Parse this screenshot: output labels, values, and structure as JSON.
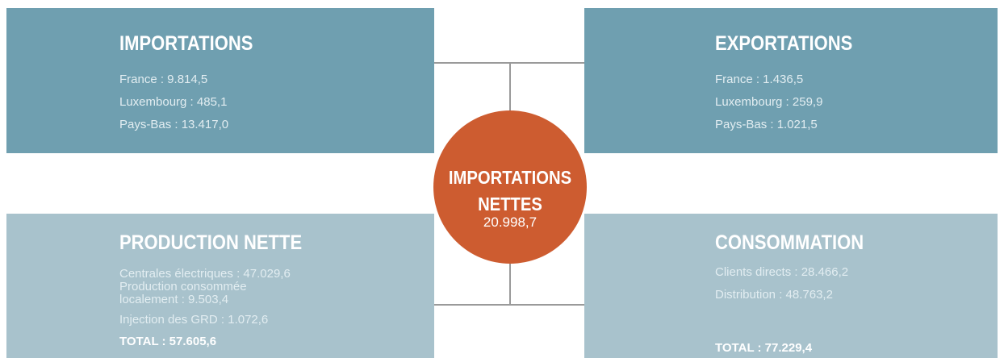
{
  "importations": {
    "title": "IMPORTATIONS",
    "items": [
      "France : 9.814,5",
      "Luxembourg : 485,1",
      "Pays-Bas : 13.417,0"
    ]
  },
  "exportations": {
    "title": "EXPORTATIONS",
    "items": [
      "France : 1.436,5",
      "Luxembourg : 259,9",
      "Pays-Bas : 1.021,5"
    ]
  },
  "production": {
    "title": "PRODUCTION NETTE",
    "items": [
      "Centrales électriques :  47.029,6",
      "Production consommée localement : 9.503,4",
      "Injection des GRD : 1.072,6"
    ],
    "total": "TOTAL : 57.605,6"
  },
  "consommation": {
    "title": "CONSOMMATION",
    "items": [
      "Clients directs : 28.466,2",
      "Distribution : 48.763,2"
    ],
    "total": "TOTAL : 77.229,4"
  },
  "center": {
    "title_line1": "IMPORTATIONS",
    "title_line2": "NETTES",
    "value": "20.998,7"
  }
}
